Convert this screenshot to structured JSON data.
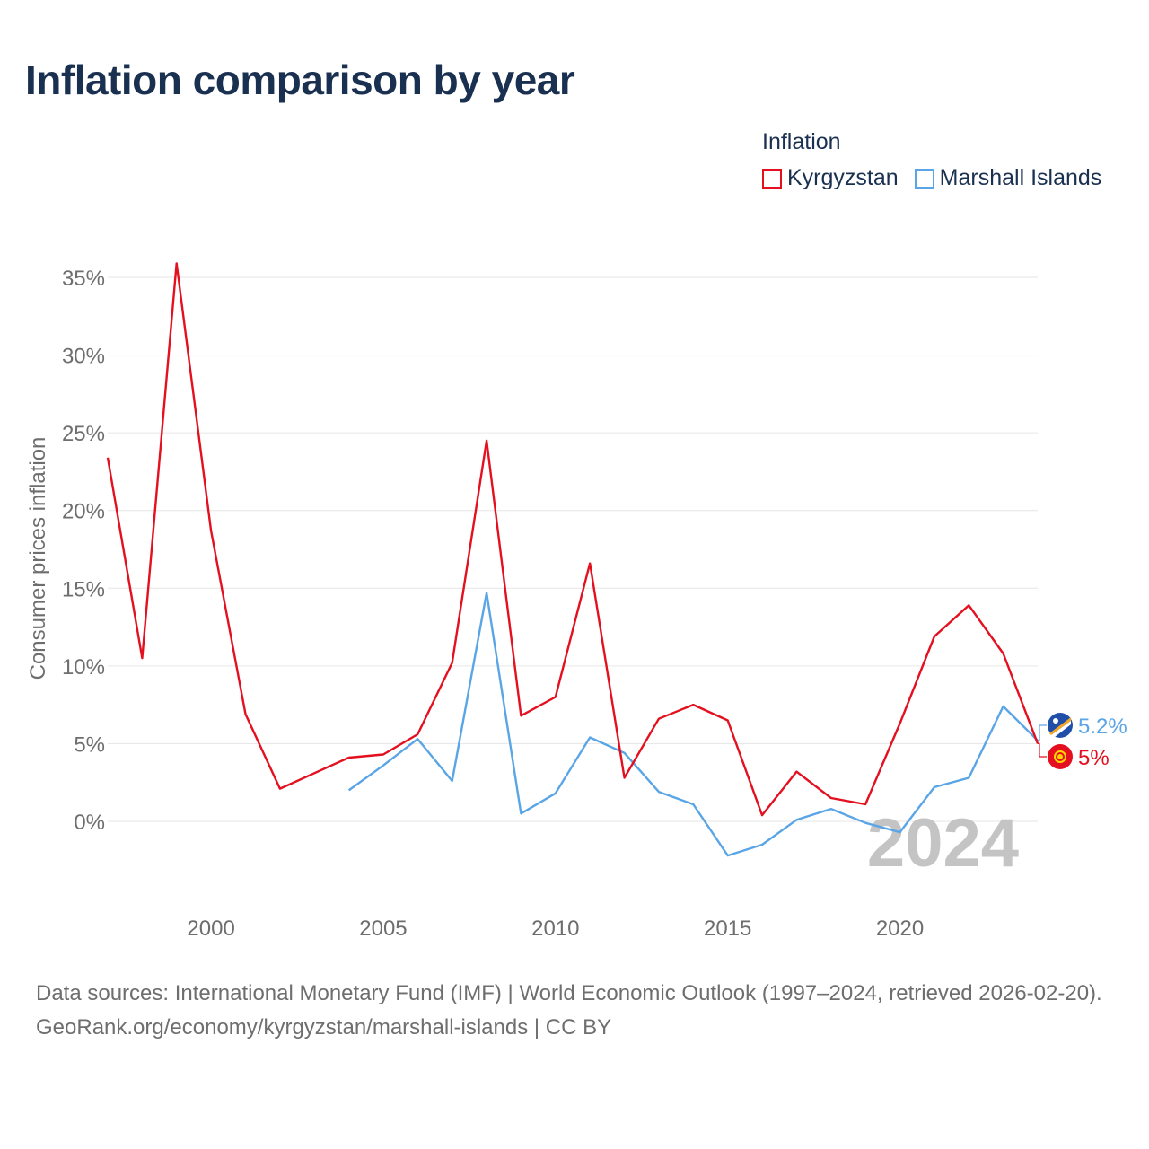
{
  "title": "Inflation comparison by year",
  "legend": {
    "title": "Inflation",
    "items": [
      {
        "label": "Kyrgyzstan",
        "color": "#e4101f"
      },
      {
        "label": "Marshall Islands",
        "color": "#5aa5e6"
      }
    ]
  },
  "footer": {
    "sources": "Data sources: International Monetary Fund (IMF) | World Economic Outlook (1997–2024, retrieved 2026-02-20).",
    "link": "GeoRank.org/economy/kyrgyzstan/marshall-islands | CC BY"
  },
  "chart_data": {
    "type": "line",
    "title": "Inflation comparison by year",
    "xlabel": "",
    "ylabel": "Consumer prices inflation",
    "xlim": [
      1997,
      2024
    ],
    "ylim": [
      -5,
      36
    ],
    "y_ticks": [
      0,
      5,
      10,
      15,
      20,
      25,
      30,
      35
    ],
    "y_tick_labels": [
      "0%",
      "5%",
      "10%",
      "15%",
      "20%",
      "25%",
      "30%",
      "35%"
    ],
    "x_ticks": [
      2000,
      2005,
      2010,
      2015,
      2020
    ],
    "x_tick_labels": [
      "2000",
      "2005",
      "2010",
      "2015",
      "2020"
    ],
    "grid": true,
    "year_watermark": "2024",
    "series": [
      {
        "name": "Kyrgyzstan",
        "color": "#e4101f",
        "end_label": "5%",
        "x": [
          1997,
          1998,
          1999,
          2000,
          2001,
          2002,
          2003,
          2004,
          2005,
          2006,
          2007,
          2008,
          2009,
          2010,
          2011,
          2012,
          2013,
          2014,
          2015,
          2016,
          2017,
          2018,
          2019,
          2020,
          2021,
          2022,
          2023,
          2024
        ],
        "values": [
          23.4,
          10.5,
          35.9,
          18.7,
          6.9,
          2.1,
          3.1,
          4.1,
          4.3,
          5.6,
          10.2,
          24.5,
          6.8,
          8.0,
          16.6,
          2.8,
          6.6,
          7.5,
          6.5,
          0.4,
          3.2,
          1.5,
          1.1,
          6.3,
          11.9,
          13.9,
          10.8,
          5.0
        ]
      },
      {
        "name": "Marshall Islands",
        "color": "#5aa5e6",
        "end_label": "5.2%",
        "x": [
          2004,
          2005,
          2006,
          2007,
          2008,
          2009,
          2010,
          2011,
          2012,
          2013,
          2014,
          2015,
          2016,
          2017,
          2018,
          2019,
          2020,
          2021,
          2022,
          2023,
          2024
        ],
        "values": [
          2.0,
          3.6,
          5.3,
          2.6,
          14.7,
          0.5,
          1.8,
          5.4,
          4.4,
          1.9,
          1.1,
          -2.2,
          -1.5,
          0.1,
          0.8,
          -0.1,
          -0.7,
          2.2,
          2.8,
          7.4,
          5.2
        ]
      }
    ]
  }
}
